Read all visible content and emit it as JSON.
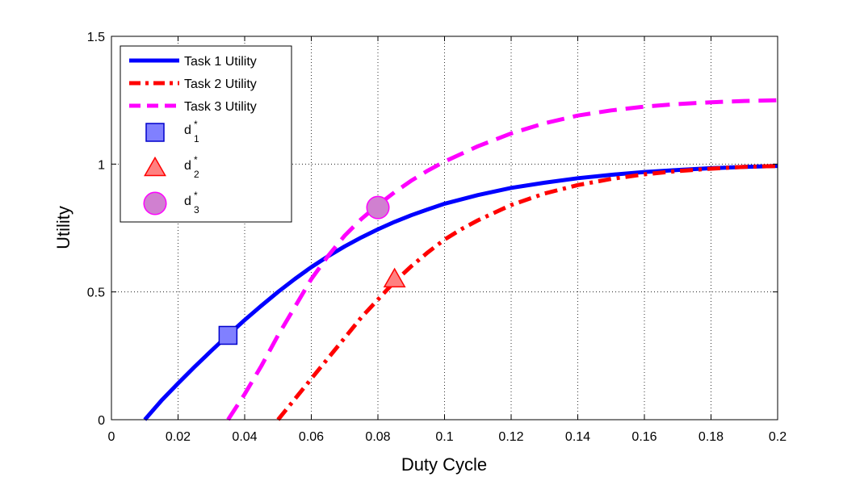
{
  "chart_data": {
    "type": "line",
    "xlabel": "Duty Cycle",
    "ylabel": "Utility",
    "xlim": [
      0,
      0.2
    ],
    "ylim": [
      0,
      1.5
    ],
    "xticks": [
      0,
      0.02,
      0.04,
      0.06,
      0.08,
      0.1,
      0.12,
      0.14,
      0.16,
      0.18,
      0.2
    ],
    "xtick_labels": [
      "0",
      "0.02",
      "0.04",
      "0.06",
      "0.08",
      "0.1",
      "0.12",
      "0.14",
      "0.16",
      "0.18",
      "0.2"
    ],
    "yticks": [
      0,
      0.5,
      1,
      1.5
    ],
    "ytick_labels": [
      "0",
      "0.5",
      "1",
      "1.5"
    ],
    "grid": true,
    "legend_position": "top-left",
    "series": [
      {
        "name": "Task 1 Utility",
        "color": "#0000ff",
        "style": "solid",
        "x": [
          0.01,
          0.015,
          0.02,
          0.025,
          0.03,
          0.035,
          0.04,
          0.045,
          0.05,
          0.055,
          0.06,
          0.065,
          0.07,
          0.075,
          0.08,
          0.085,
          0.09,
          0.095,
          0.1,
          0.11,
          0.12,
          0.13,
          0.14,
          0.15,
          0.16,
          0.17,
          0.18,
          0.19,
          0.2
        ],
        "y": [
          0.0,
          0.075,
          0.142,
          0.207,
          0.27,
          0.331,
          0.39,
          0.446,
          0.5,
          0.55,
          0.597,
          0.639,
          0.678,
          0.713,
          0.745,
          0.774,
          0.8,
          0.823,
          0.845,
          0.879,
          0.907,
          0.927,
          0.945,
          0.958,
          0.969,
          0.977,
          0.984,
          0.989,
          0.993
        ]
      },
      {
        "name": "Task 2 Utility",
        "color": "#ff0000",
        "style": "dashdot",
        "x": [
          0.05,
          0.055,
          0.06,
          0.065,
          0.07,
          0.075,
          0.08,
          0.085,
          0.09,
          0.095,
          0.1,
          0.105,
          0.11,
          0.12,
          0.13,
          0.14,
          0.15,
          0.16,
          0.17,
          0.18,
          0.19,
          0.2
        ],
        "y": [
          0.0,
          0.08,
          0.16,
          0.24,
          0.32,
          0.4,
          0.47,
          0.54,
          0.6,
          0.655,
          0.705,
          0.745,
          0.78,
          0.84,
          0.885,
          0.918,
          0.942,
          0.96,
          0.973,
          0.982,
          0.989,
          0.993
        ]
      },
      {
        "name": "Task 3 Utility",
        "color": "#ff00ff",
        "style": "dashed",
        "x": [
          0.035,
          0.04,
          0.045,
          0.05,
          0.055,
          0.06,
          0.065,
          0.07,
          0.075,
          0.08,
          0.085,
          0.09,
          0.095,
          0.1,
          0.11,
          0.12,
          0.13,
          0.14,
          0.15,
          0.16,
          0.17,
          0.18,
          0.19,
          0.2
        ],
        "y": [
          0.0,
          0.1,
          0.21,
          0.33,
          0.44,
          0.55,
          0.64,
          0.72,
          0.785,
          0.84,
          0.89,
          0.935,
          0.975,
          1.01,
          1.07,
          1.12,
          1.16,
          1.19,
          1.21,
          1.225,
          1.235,
          1.242,
          1.247,
          1.25
        ]
      }
    ],
    "markers": [
      {
        "name": "d",
        "sup": "*",
        "sub": "1",
        "shape": "square",
        "x": 0.035,
        "y": 0.33,
        "fill": "#8080ff",
        "stroke": "#0000cc"
      },
      {
        "name": "d",
        "sup": "*",
        "sub": "2",
        "shape": "triangle",
        "x": 0.085,
        "y": 0.55,
        "fill": "#ff8080",
        "stroke": "#ff0000"
      },
      {
        "name": "d",
        "sup": "*",
        "sub": "3",
        "shape": "circle",
        "x": 0.08,
        "y": 0.83,
        "fill": "#d080d0",
        "stroke": "#ff00ff"
      }
    ]
  }
}
